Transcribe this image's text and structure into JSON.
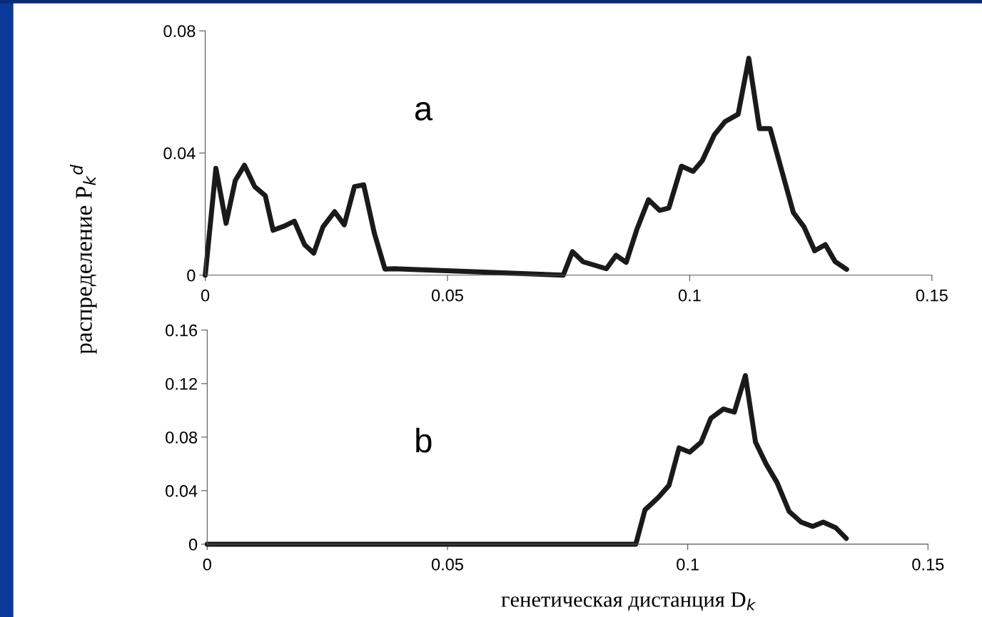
{
  "chart_data": [
    {
      "type": "line",
      "ylabel": "распределение P$_{k}$$^{d}$",
      "annotations": [
        "a"
      ],
      "marker": "none",
      "line_style": "solid",
      "x": [
        0.0,
        0.0022,
        0.0043,
        0.0062,
        0.0081,
        0.0102,
        0.0124,
        0.014,
        0.0162,
        0.0184,
        0.0205,
        0.0224,
        0.0243,
        0.0267,
        0.0287,
        0.0308,
        0.0327,
        0.0349,
        0.0371,
        0.039,
        0.0739,
        0.0758,
        0.078,
        0.0828,
        0.0848,
        0.0869,
        0.0891,
        0.0915,
        0.0938,
        0.0957,
        0.0983,
        0.1007,
        0.1026,
        0.1051,
        0.1073,
        0.11,
        0.1122,
        0.1144,
        0.1166,
        0.1214,
        0.1236,
        0.1258,
        0.128,
        0.13,
        0.1324
      ],
      "series": [
        {
          "color": "#1a1a1a",
          "values": [
            0.0,
            0.035,
            0.017,
            0.031,
            0.036,
            0.029,
            0.026,
            0.0147,
            0.016,
            0.0177,
            0.01,
            0.0072,
            0.0158,
            0.0208,
            0.0165,
            0.029,
            0.0296,
            0.0138,
            0.002,
            0.0021,
            0.0,
            0.0077,
            0.0044,
            0.0021,
            0.0065,
            0.0042,
            0.015,
            0.0247,
            0.0212,
            0.022,
            0.0357,
            0.034,
            0.0375,
            0.046,
            0.0503,
            0.0527,
            0.071,
            0.048,
            0.048,
            0.0205,
            0.0158,
            0.008,
            0.01,
            0.0045,
            0.0019
          ]
        }
      ],
      "xlim": [
        0,
        0.15
      ],
      "xticks": [
        0,
        0.05,
        0.1,
        0.15
      ],
      "ylim": [
        0,
        0.08
      ],
      "yticks": [
        0,
        0.04,
        0.08
      ]
    },
    {
      "type": "line",
      "xlabel": "генетическая дистанция D$_{k}$",
      "annotations": [
        "b"
      ],
      "marker": "none",
      "line_style": "solid",
      "x": [
        0.0,
        0.0892,
        0.0911,
        0.0939,
        0.0961,
        0.0982,
        0.1004,
        0.1028,
        0.1048,
        0.1074,
        0.1097,
        0.112,
        0.1141,
        0.1163,
        0.1186,
        0.1211,
        0.1236,
        0.126,
        0.1282,
        0.1308,
        0.133
      ],
      "series": [
        {
          "color": "#1a1a1a",
          "values": [
            0.0,
            0.0,
            0.0256,
            0.035,
            0.044,
            0.072,
            0.0688,
            0.0763,
            0.094,
            0.101,
            0.0987,
            0.126,
            0.0763,
            0.06,
            0.046,
            0.0245,
            0.0165,
            0.0133,
            0.0165,
            0.0123,
            0.0043
          ]
        }
      ],
      "xlim": [
        0,
        0.15
      ],
      "xticks": [
        0,
        0.05,
        0.1,
        0.15
      ],
      "ylim": [
        0,
        0.16
      ],
      "yticks": [
        0,
        0.04,
        0.08,
        0.12,
        0.16
      ]
    }
  ]
}
